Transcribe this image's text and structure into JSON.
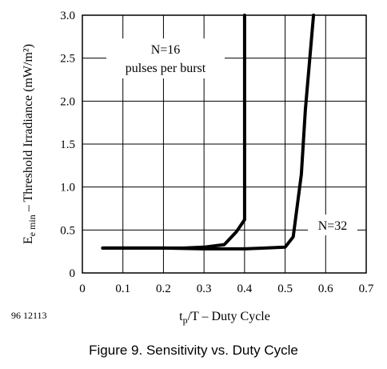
{
  "figure": {
    "doc_id": "96 12113",
    "caption": "Figure 9.  Sensitivity vs. Duty Cycle"
  },
  "chart_data": {
    "type": "line",
    "title": "",
    "xlabel": {
      "main": "t",
      "sub": "p",
      "rest": "/T – Duty Cycle"
    },
    "ylabel": {
      "main": "E",
      "sub": "e min",
      "rest": "  – Threshold Irradiance (mW/m²)"
    },
    "xlim": [
      0,
      0.7
    ],
    "ylim": [
      0,
      3.0
    ],
    "x_ticks": [
      "0",
      "0.1",
      "0.2",
      "0.3",
      "0.4",
      "0.5",
      "0.6",
      "0.7"
    ],
    "y_ticks": [
      "0",
      "0.5",
      "1.0",
      "1.5",
      "2.0",
      "2.5",
      "3.0"
    ],
    "grid": true,
    "series": [
      {
        "name": "N=16 pulses per burst",
        "x": [
          0.05,
          0.1,
          0.15,
          0.2,
          0.25,
          0.3,
          0.35,
          0.38,
          0.4,
          0.4
        ],
        "y": [
          0.29,
          0.29,
          0.29,
          0.29,
          0.29,
          0.3,
          0.33,
          0.48,
          0.62,
          3.0
        ]
      },
      {
        "name": "N=32",
        "x": [
          0.05,
          0.1,
          0.2,
          0.3,
          0.4,
          0.45,
          0.5,
          0.52,
          0.54,
          0.55,
          0.57
        ],
        "y": [
          0.29,
          0.29,
          0.29,
          0.28,
          0.28,
          0.29,
          0.3,
          0.42,
          1.15,
          1.9,
          3.0
        ]
      }
    ],
    "annotations": [
      {
        "line1": "N=16",
        "line2": "pulses  per burst"
      },
      {
        "line1": "N=32"
      }
    ]
  }
}
